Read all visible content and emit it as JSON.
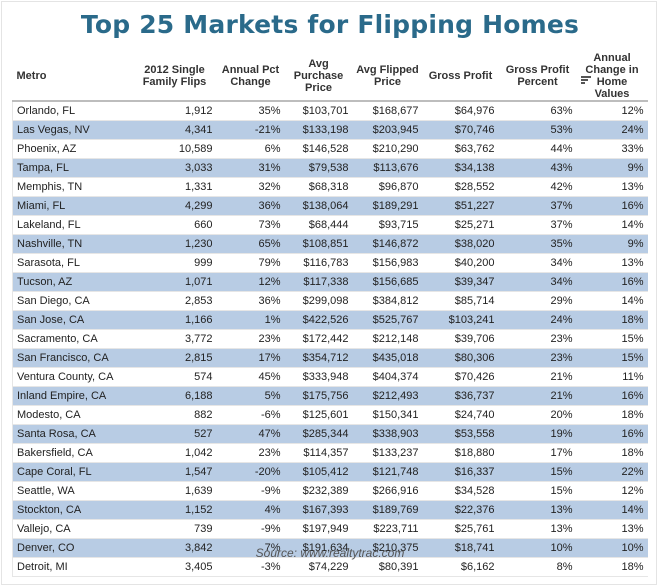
{
  "title": "Top 25 Markets for Flipping Homes",
  "source": "Source: www.realtytrac.com",
  "colors": {
    "title": "#2a6a8a",
    "row_band": "#b8cce4"
  },
  "sort_icon": "sort-descending-icon",
  "columns": [
    "Metro",
    "2012 Single Family Flips",
    "Annual Pct Change",
    "Avg Purchase Price",
    "Avg Flipped Price",
    "Gross Profit",
    "Gross Profit Percent",
    "Annual Change in Home Values"
  ],
  "chart_data": {
    "type": "table",
    "title": "Top 25 Markets for Flipping Homes",
    "sorted_by": "Gross Profit Percent",
    "rows": [
      [
        "Orlando, FL",
        "1,912",
        "35%",
        "$103,701",
        "$168,677",
        "$64,976",
        "63%",
        "12%"
      ],
      [
        "Las Vegas, NV",
        "4,341",
        "-21%",
        "$133,198",
        "$203,945",
        "$70,746",
        "53%",
        "24%"
      ],
      [
        "Phoenix, AZ",
        "10,589",
        "6%",
        "$146,528",
        "$210,290",
        "$63,762",
        "44%",
        "33%"
      ],
      [
        "Tampa, FL",
        "3,033",
        "31%",
        "$79,538",
        "$113,676",
        "$34,138",
        "43%",
        "9%"
      ],
      [
        "Memphis, TN",
        "1,331",
        "32%",
        "$68,318",
        "$96,870",
        "$28,552",
        "42%",
        "13%"
      ],
      [
        "Miami, FL",
        "4,299",
        "36%",
        "$138,064",
        "$189,291",
        "$51,227",
        "37%",
        "16%"
      ],
      [
        "Lakeland, FL",
        "660",
        "73%",
        "$68,444",
        "$93,715",
        "$25,271",
        "37%",
        "14%"
      ],
      [
        "Nashville, TN",
        "1,230",
        "65%",
        "$108,851",
        "$146,872",
        "$38,020",
        "35%",
        "9%"
      ],
      [
        "Sarasota, FL",
        "999",
        "79%",
        "$116,783",
        "$156,983",
        "$40,200",
        "34%",
        "13%"
      ],
      [
        "Tucson, AZ",
        "1,071",
        "12%",
        "$117,338",
        "$156,685",
        "$39,347",
        "34%",
        "16%"
      ],
      [
        "San Diego, CA",
        "2,853",
        "36%",
        "$299,098",
        "$384,812",
        "$85,714",
        "29%",
        "14%"
      ],
      [
        "San Jose, CA",
        "1,166",
        "1%",
        "$422,526",
        "$525,767",
        "$103,241",
        "24%",
        "18%"
      ],
      [
        "Sacramento, CA",
        "3,772",
        "23%",
        "$172,442",
        "$212,148",
        "$39,706",
        "23%",
        "15%"
      ],
      [
        "San Francisco, CA",
        "2,815",
        "17%",
        "$354,712",
        "$435,018",
        "$80,306",
        "23%",
        "15%"
      ],
      [
        "Ventura County, CA",
        "574",
        "45%",
        "$333,948",
        "$404,374",
        "$70,426",
        "21%",
        "11%"
      ],
      [
        "Inland Empire, CA",
        "6,188",
        "5%",
        "$175,756",
        "$212,493",
        "$36,737",
        "21%",
        "16%"
      ],
      [
        "Modesto, CA",
        "882",
        "-6%",
        "$125,601",
        "$150,341",
        "$24,740",
        "20%",
        "18%"
      ],
      [
        "Santa Rosa, CA",
        "527",
        "47%",
        "$285,344",
        "$338,903",
        "$53,558",
        "19%",
        "16%"
      ],
      [
        "Bakersfield, CA",
        "1,042",
        "23%",
        "$114,357",
        "$133,237",
        "$18,880",
        "17%",
        "18%"
      ],
      [
        "Cape Coral, FL",
        "1,547",
        "-20%",
        "$105,412",
        "$121,748",
        "$16,337",
        "15%",
        "22%"
      ],
      [
        "Seattle, WA",
        "1,639",
        "-9%",
        "$232,389",
        "$266,916",
        "$34,528",
        "15%",
        "12%"
      ],
      [
        "Stockton, CA",
        "1,152",
        "4%",
        "$167,393",
        "$189,769",
        "$22,376",
        "13%",
        "14%"
      ],
      [
        "Vallejo, CA",
        "739",
        "-9%",
        "$197,949",
        "$223,711",
        "$25,761",
        "13%",
        "13%"
      ],
      [
        "Denver, CO",
        "3,842",
        "7%",
        "$191,634",
        "$210,375",
        "$18,741",
        "10%",
        "10%"
      ],
      [
        "Detroit, MI",
        "3,405",
        "-3%",
        "$74,229",
        "$80,391",
        "$6,162",
        "8%",
        "18%"
      ]
    ]
  }
}
